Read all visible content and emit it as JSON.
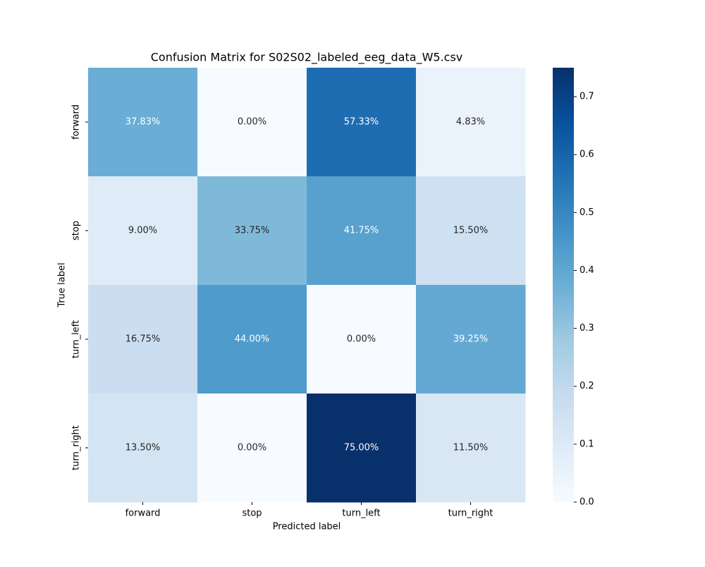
{
  "chart_data": {
    "type": "heatmap",
    "title": "Confusion Matrix for S02S02_labeled_eeg_data_W5.csv",
    "x_label": "Predicted label",
    "y_label": "True label",
    "x_categories": [
      "forward",
      "stop",
      "turn_left",
      "turn_right"
    ],
    "y_categories": [
      "forward",
      "stop",
      "turn_left",
      "turn_right"
    ],
    "values": [
      [
        0.3783,
        0,
        0.5733,
        0.0483
      ],
      [
        0.09,
        0.3375,
        0.4175,
        0.155
      ],
      [
        0.1675,
        0.44,
        0,
        0.3925
      ],
      [
        0.135,
        0,
        0.75,
        0.115
      ]
    ],
    "value_labels": [
      [
        "37.83%",
        "0.00%",
        "57.33%",
        "4.83%"
      ],
      [
        "9.00%",
        "33.75%",
        "41.75%",
        "15.50%"
      ],
      [
        "16.75%",
        "44.00%",
        "0.00%",
        "39.25%"
      ],
      [
        "13.50%",
        "0.00%",
        "75.00%",
        "11.50%"
      ]
    ],
    "colormap": [
      "#f7fbff",
      "#deebf7",
      "#c6dbef",
      "#9ecae1",
      "#6baed6",
      "#4292c6",
      "#2171b5",
      "#08519c",
      "#08306b"
    ],
    "clim": [
      0,
      0.75
    ],
    "colorbar_ticks": [
      {
        "value": 0,
        "label": "0.0"
      },
      0.1,
      0.2,
      0.3,
      0.4,
      0.5,
      0.6,
      0.7
    ]
  }
}
